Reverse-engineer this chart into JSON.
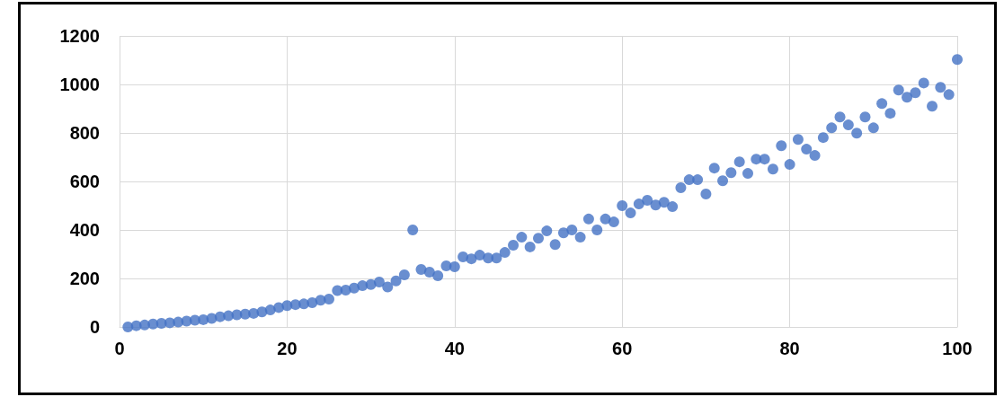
{
  "chart_data": {
    "type": "scatter",
    "x": [
      1,
      2,
      3,
      4,
      5,
      6,
      7,
      8,
      9,
      10,
      11,
      12,
      13,
      14,
      15,
      16,
      17,
      18,
      19,
      20,
      21,
      22,
      23,
      24,
      25,
      26,
      27,
      28,
      29,
      30,
      31,
      32,
      33,
      34,
      35,
      36,
      37,
      38,
      39,
      40,
      41,
      42,
      43,
      44,
      45,
      46,
      47,
      48,
      49,
      50,
      51,
      52,
      53,
      54,
      55,
      56,
      57,
      58,
      59,
      60,
      61,
      62,
      63,
      64,
      65,
      66,
      67,
      68,
      69,
      70,
      71,
      72,
      73,
      74,
      75,
      76,
      77,
      78,
      79,
      80,
      81,
      82,
      83,
      84,
      85,
      86,
      87,
      88,
      89,
      90,
      91,
      92,
      93,
      94,
      95,
      96,
      97,
      98,
      99,
      100
    ],
    "series": [
      {
        "color": "#4472c4",
        "values": [
          0,
          5,
          8,
          12,
          15,
          17,
          20,
          24,
          28,
          30,
          35,
          42,
          46,
          50,
          53,
          56,
          62,
          70,
          80,
          88,
          92,
          95,
          100,
          110,
          115,
          150,
          152,
          160,
          170,
          175,
          185,
          165,
          190,
          215,
          400,
          237,
          226,
          211,
          252,
          248,
          289,
          281,
          296,
          284,
          284,
          307,
          337,
          370,
          330,
          366,
          396,
          340,
          388,
          400,
          370,
          445,
          400,
          445,
          433,
          500,
          470,
          507,
          522,
          503,
          514,
          496,
          574,
          607,
          607,
          548,
          655,
          603,
          636,
          681,
          633,
          692,
          692,
          651,
          747,
          670,
          773,
          733,
          707,
          781,
          821,
          866,
          833,
          799,
          866,
          821,
          921,
          881,
          977,
          947,
          966,
          1006,
          910,
          988,
          958,
          1103
        ]
      }
    ],
    "xlim": [
      0,
      100
    ],
    "xticks": [
      0,
      20,
      40,
      60,
      80,
      100
    ],
    "ylim": [
      0,
      1200
    ],
    "yticks": [
      0,
      200,
      400,
      600,
      800,
      1000,
      1200
    ],
    "grid": true,
    "marker": "circle"
  }
}
